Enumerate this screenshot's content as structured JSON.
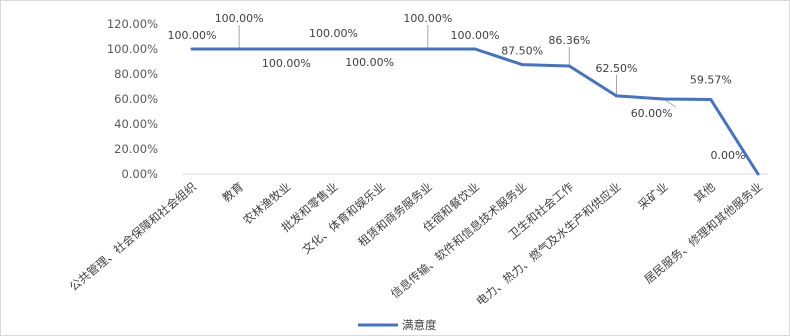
{
  "chart_data": {
    "type": "line",
    "categories": [
      "公共管理、社会保障和社会组织",
      "教育",
      "农林渔牧业",
      "批发和零售业",
      "文化、体育和娱乐业",
      "租赁和商务服务业",
      "住宿和餐饮业",
      "信息传输、软件和信息技术服务业",
      "卫生和社会工作",
      "电力、热力、燃气及水生产和供应业",
      "采矿业",
      "其他",
      "居民服务、修理和其他服务业"
    ],
    "series": [
      {
        "name": "满意度",
        "values": [
          100.0,
          100.0,
          100.0,
          100.0,
          100.0,
          100.0,
          100.0,
          87.5,
          86.36,
          62.5,
          60.0,
          59.57,
          0.0
        ],
        "labels": [
          "100.00%",
          "100.00%",
          "100.00%",
          "100.00%",
          "100.00%",
          "100.00%",
          "100.00%",
          "87.50%",
          "86.36%",
          "62.50%",
          "60.00%",
          "59.57%",
          "0.00%"
        ],
        "color": "#4472C4"
      }
    ],
    "yticks": [
      "0.00%",
      "20.00%",
      "40.00%",
      "60.00%",
      "80.00%",
      "100.00%",
      "120.00%"
    ],
    "ylim": [
      0,
      120
    ],
    "title": "",
    "xlabel": "",
    "ylabel": "",
    "grid": false,
    "legend_position": "bottom"
  }
}
